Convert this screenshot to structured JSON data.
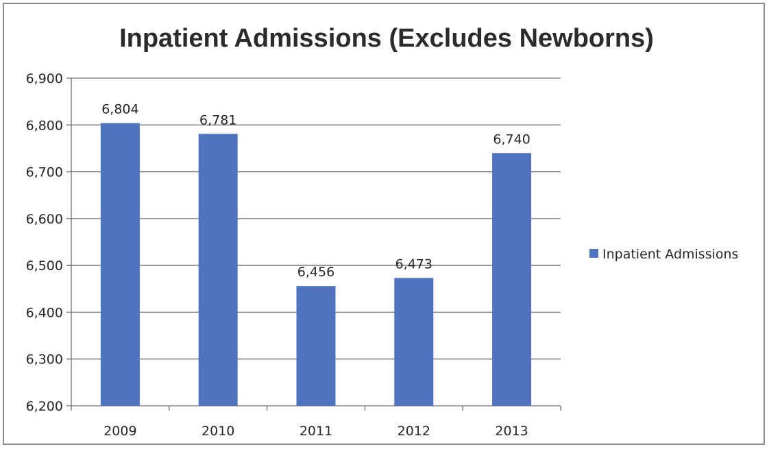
{
  "chart_data": {
    "type": "bar",
    "title": "Inpatient Admissions (Excludes Newborns)",
    "xlabel": "",
    "ylabel": "",
    "categories": [
      "2009",
      "2010",
      "2011",
      "2012",
      "2013"
    ],
    "series": [
      {
        "name": "Inpatient Admissions",
        "values": [
          6804,
          6781,
          6456,
          6473,
          6740
        ],
        "data_labels": [
          "6,804",
          "6,781",
          "6,456",
          "6,473",
          "6,740"
        ],
        "color": "#4f74bd"
      }
    ],
    "ylim": [
      6200,
      6900
    ],
    "yticks": [
      6200,
      6300,
      6400,
      6500,
      6600,
      6700,
      6800,
      6900
    ],
    "ytick_labels": [
      "6,200",
      "6,300",
      "6,400",
      "6,500",
      "6,600",
      "6,700",
      "6,800",
      "6,900"
    ],
    "grid": true,
    "legend_position": "right"
  }
}
